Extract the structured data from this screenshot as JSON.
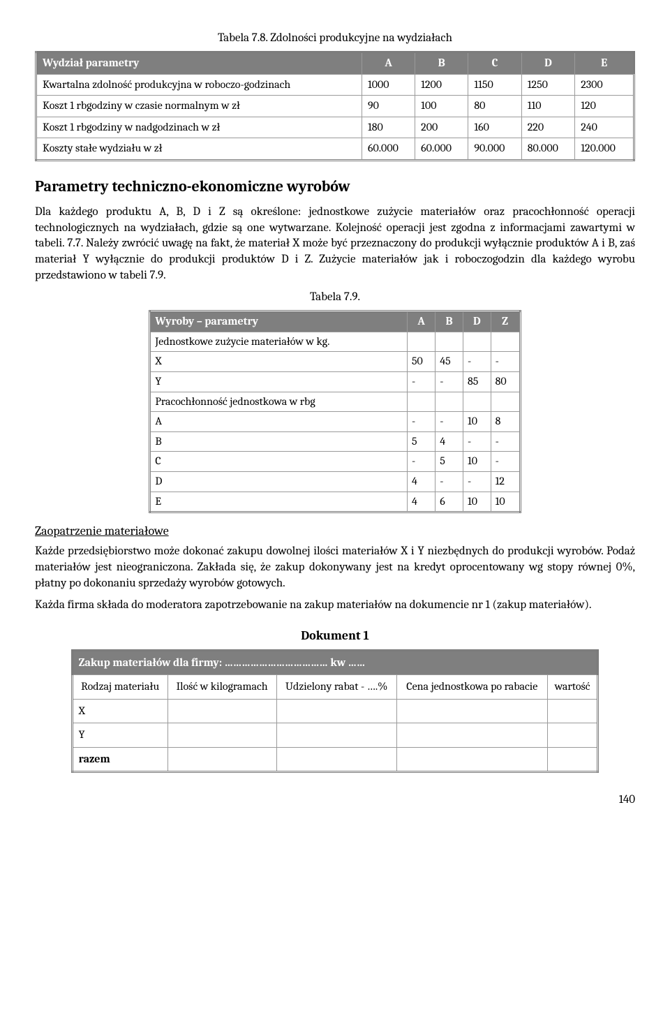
{
  "captions": {
    "t78": "Tabela 7.8. Zdolności produkcyjne na wydziałach",
    "t79": "Tabela 7.9.",
    "doc": "Dokument 1"
  },
  "t78": {
    "header": [
      "Wydział parametry",
      "A",
      "B",
      "C",
      "D",
      "E"
    ],
    "rows": [
      [
        "Kwartalna zdolność produkcyjna w roboczo-godzinach",
        "1000",
        "1200",
        "1150",
        "1250",
        "2300"
      ],
      [
        "Koszt 1 rbgodziny w czasie normalnym w zł",
        "90",
        "100",
        "80",
        "110",
        "120"
      ],
      [
        "Koszt 1 rbgodziny w nadgodzinach w zł",
        "180",
        "200",
        "160",
        "220",
        "240"
      ],
      [
        "Koszty stałe wydziału w zł",
        "60.000",
        "60.000",
        "90.000",
        "80.000",
        "120.000"
      ]
    ]
  },
  "section1": {
    "title": "Parametry techniczno-ekonomiczne wyrobów",
    "para": "Dla każdego produktu A, B, D i Z są określone: jednostkowe zużycie materiałów oraz pracochłonność operacji technologicznych na wydziałach, gdzie są one wytwarzane. Kolejność operacji jest zgodna z informacjami zawartymi w tabeli. 7.7. Należy zwrócić uwagę na fakt, że materiał X może być przeznaczony do produkcji wyłącznie produktów A i B, zaś materiał Y wyłącznie do produkcji produktów D i Z. Zużycie materiałów jak i roboczogodzin dla każdego wyrobu przedstawiono w tabeli 7.9."
  },
  "t79": {
    "header": [
      "Wyroby – parametry",
      "A",
      "B",
      "D",
      "Z"
    ],
    "group1_label": "Jednostkowe zużycie materiałów w kg.",
    "group1_rows": [
      [
        "X",
        "50",
        "45",
        "-",
        "-"
      ],
      [
        "Y",
        "-",
        "-",
        "85",
        "80"
      ]
    ],
    "group2_label": "Pracochłonność jednostkowa w rbg",
    "group2_rows": [
      [
        "A",
        "-",
        "-",
        "10",
        "8"
      ],
      [
        "B",
        "5",
        "4",
        "-",
        "-"
      ],
      [
        "C",
        "-",
        "5",
        "10",
        "-"
      ],
      [
        "D",
        "4",
        "-",
        "-",
        "12"
      ],
      [
        "E",
        "4",
        "6",
        "10",
        "10"
      ]
    ]
  },
  "section2": {
    "subhead": "Zaopatrzenie materiałowe",
    "para1": "Każde przedsiębiorstwo może dokonać zakupu dowolnej ilości materiałów X i Y niezbędnych do produkcji wyrobów. Podaż materiałów jest nieograniczona. Zakłada się, że zakup dokonywany jest  na kredyt oprocentowany wg stopy równej 0%,  płatny po dokonaniu sprzedaży wyrobów gotowych.",
    "para2": "Każda firma składa do moderatora zapotrzebowanie na zakup materiałów na dokumencie nr 1 (zakup materiałów)."
  },
  "tdoc": {
    "header_full": "Zakup materiałów dla firmy: ……………………………… kw ……",
    "cols": [
      "Rodzaj materiału",
      "Ilość w kilogramach",
      "Udzielony rabat - ….%",
      "Cena jednostkowa po rabacie",
      "wartość"
    ],
    "rows": [
      "X",
      "Y",
      "razem"
    ]
  },
  "pagenum": "140"
}
